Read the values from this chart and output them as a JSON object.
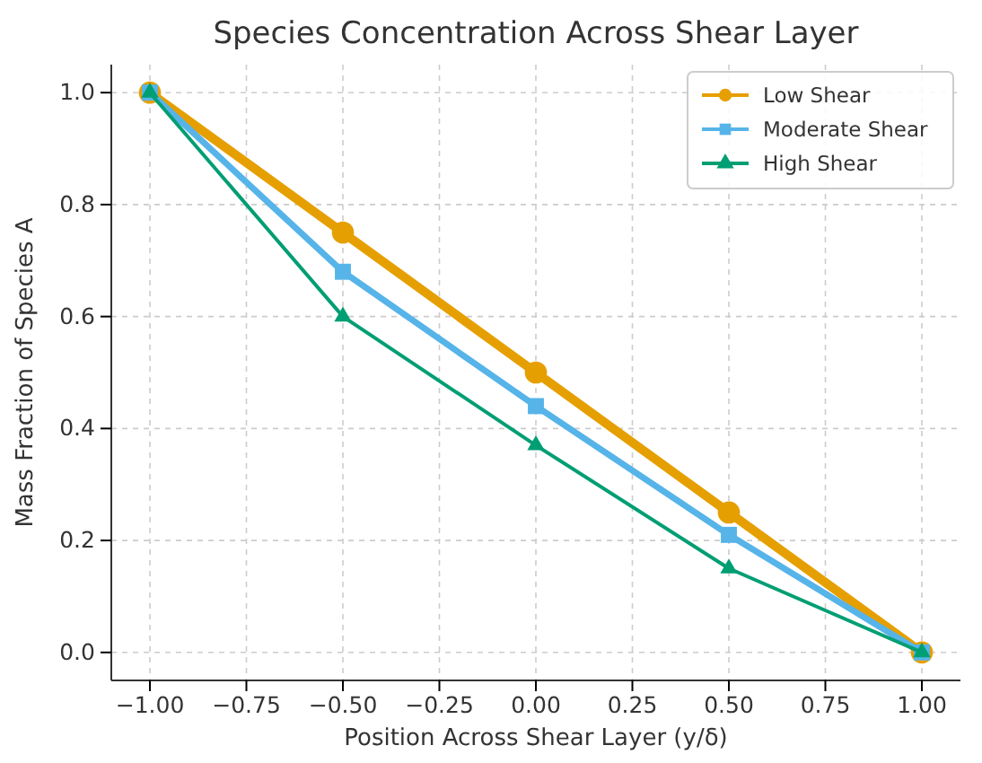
{
  "chart_data": {
    "type": "line",
    "title": "Species Concentration Across Shear Layer",
    "xlabel": "Position Across Shear Layer (y/δ)",
    "ylabel": "Mass Fraction of Species A",
    "x": [
      -1,
      -0.5,
      0,
      0.5,
      1
    ],
    "series": [
      {
        "name": "Low Shear",
        "color": "#e69f00",
        "marker": "circle",
        "values": [
          1,
          0.75,
          0.5,
          0.25,
          0
        ]
      },
      {
        "name": "Moderate Shear",
        "color": "#56b4e9",
        "marker": "square",
        "values": [
          1,
          0.68,
          0.44,
          0.21,
          0
        ]
      },
      {
        "name": "High Shear",
        "color": "#009e73",
        "marker": "triangle",
        "values": [
          1,
          0.6,
          0.37,
          0.15,
          0
        ]
      }
    ],
    "xlim": [
      -1.1,
      1.1
    ],
    "ylim": [
      -0.05,
      1.05
    ],
    "xticks": [
      {
        "value": -1,
        "label": "−1.00"
      },
      {
        "value": -0.75,
        "label": "−0.75"
      },
      {
        "value": -0.5,
        "label": "−0.50"
      },
      {
        "value": -0.25,
        "label": "−0.25"
      },
      {
        "value": 0,
        "label": "0.00"
      },
      {
        "value": 0.25,
        "label": "0.25"
      },
      {
        "value": 0.5,
        "label": "0.50"
      },
      {
        "value": 0.75,
        "label": "0.75"
      },
      {
        "value": 1,
        "label": "1.00"
      }
    ],
    "yticks": [
      {
        "value": 0,
        "label": "0.0"
      },
      {
        "value": 0.2,
        "label": "0.2"
      },
      {
        "value": 0.4,
        "label": "0.4"
      },
      {
        "value": 0.6,
        "label": "0.6"
      },
      {
        "value": 0.8,
        "label": "0.8"
      },
      {
        "value": 1,
        "label": "1.0"
      }
    ],
    "grid": true,
    "legend": "top right",
    "line_style": "solid"
  }
}
